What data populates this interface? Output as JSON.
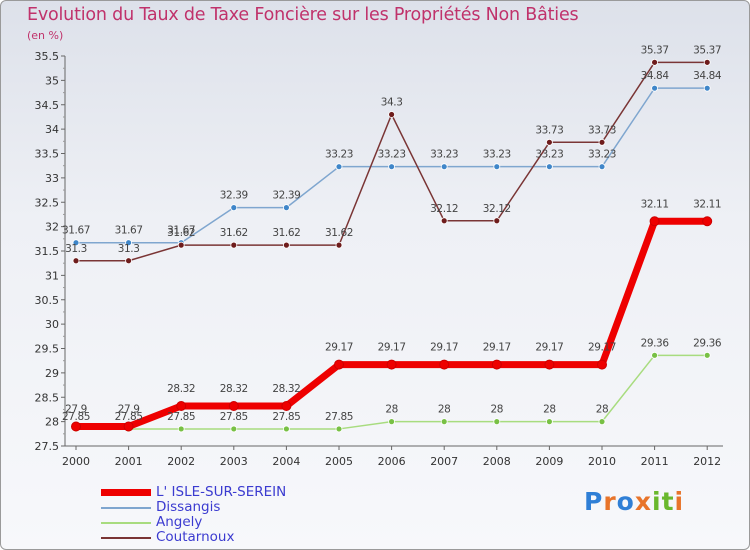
{
  "header": {
    "title": "Evolution du Taux de Taxe Foncière sur les Propriétés Non Bâties",
    "unit": "(en %)"
  },
  "chart_data": {
    "type": "line",
    "title": "Evolution du Taux de Taxe Foncière sur les Propriétés Non Bâties",
    "ylabel": "(en %)",
    "xlabel": "",
    "categories": [
      "2000",
      "2001",
      "2002",
      "2003",
      "2004",
      "2005",
      "2006",
      "2007",
      "2008",
      "2009",
      "2010",
      "2011",
      "2012"
    ],
    "ylim": [
      27.5,
      35.5
    ],
    "yticks": [
      "27.5",
      "28",
      "28.5",
      "29",
      "29.5",
      "30",
      "30.5",
      "31",
      "31.5",
      "32",
      "32.5",
      "33",
      "33.5",
      "34",
      "34.5",
      "35",
      "35.5"
    ],
    "grid": false,
    "legend_position": "bottom-left",
    "series": [
      {
        "name": "Dissangis",
        "color": "#7fa6cf",
        "marker": "#3f86c9",
        "width": 1.5,
        "values": [
          31.67,
          31.67,
          31.67,
          32.39,
          32.39,
          33.23,
          33.23,
          33.23,
          33.23,
          33.23,
          33.23,
          34.84,
          34.84
        ],
        "labels": [
          "31.67",
          "31.67",
          "31.67",
          "32.39",
          "32.39",
          "33.23",
          "33.23",
          "33.23",
          "33.23",
          "33.23",
          "33.23",
          "34.84",
          "34.84"
        ],
        "label_pos": "above"
      },
      {
        "name": "Coutarnoux",
        "color": "#7a3535",
        "marker": "#6e1c1c",
        "width": 1.5,
        "values": [
          31.3,
          31.3,
          31.62,
          31.62,
          31.62,
          31.62,
          34.3,
          32.12,
          32.12,
          33.73,
          33.73,
          35.37,
          35.37
        ],
        "labels": [
          "31.3",
          "31.3",
          "31.62",
          "31.62",
          "31.62",
          "31.62",
          "34.3",
          "32.12",
          "32.12",
          "33.73",
          "33.73",
          "35.37",
          "35.37"
        ],
        "label_pos": "above"
      },
      {
        "name": "Angely",
        "color": "#a8dc7f",
        "marker": "#78c045",
        "width": 1.5,
        "values": [
          27.85,
          27.85,
          27.85,
          27.85,
          27.85,
          27.85,
          28,
          28,
          28,
          28,
          28,
          29.36,
          29.36
        ],
        "labels": [
          "27.85",
          "27.85",
          "27.85",
          "27.85",
          "27.85",
          "27.85",
          "28",
          "28",
          "28",
          "28",
          "28",
          "29.36",
          "29.36"
        ],
        "label_pos": "above"
      },
      {
        "name": "L' ISLE-SUR-SEREIN",
        "color": "#ee0000",
        "marker": "#ee0000",
        "width": 7,
        "values": [
          27.9,
          27.9,
          28.32,
          28.32,
          28.32,
          29.17,
          29.17,
          29.17,
          29.17,
          29.17,
          29.17,
          32.11,
          32.11
        ],
        "labels": [
          "27.9",
          "27.9",
          "28.32",
          "28.32",
          "28.32",
          "29.17",
          "29.17",
          "29.17",
          "29.17",
          "29.17",
          "29.17",
          "32.11",
          "32.11"
        ],
        "label_pos": "above"
      }
    ]
  },
  "legend": {
    "items": [
      {
        "label": "L' ISLE-SUR-SEREIN",
        "color": "#ee0000",
        "thickness": "bold"
      },
      {
        "label": "Dissangis",
        "color": "#7fa6cf",
        "thickness": "thin"
      },
      {
        "label": "Angely",
        "color": "#a8dc7f",
        "thickness": "thin"
      },
      {
        "label": "Coutarnoux",
        "color": "#7a3535",
        "thickness": "thin"
      }
    ]
  },
  "logo": {
    "letters": [
      "P",
      "r",
      "o",
      "x",
      "i",
      "t",
      "i"
    ],
    "colors": [
      "#2f7fd6",
      "#e8742a",
      "#2f7fd6",
      "#e8742a",
      "#6ab82d",
      "#6ab82d",
      "#e8742a"
    ]
  }
}
